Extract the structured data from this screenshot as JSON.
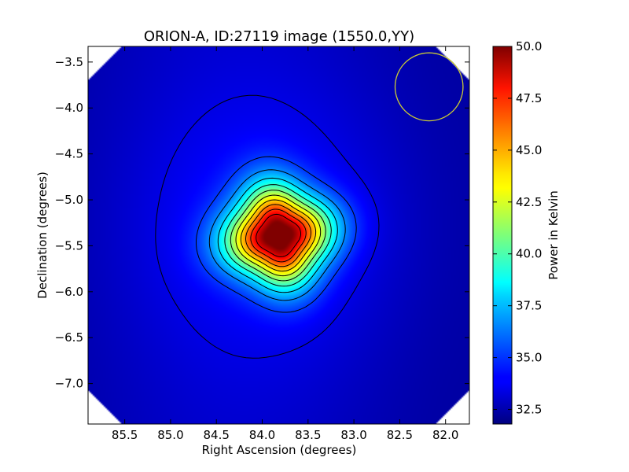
{
  "chart_data": {
    "type": "heatmap",
    "title": "ORION-A, ID:27119 image (1550.0,YY)",
    "xlabel": "Right Ascension (degrees)",
    "ylabel": "Declination (degrees)",
    "xlim": [
      85.9,
      81.74
    ],
    "ylim": [
      -7.44,
      -3.33
    ],
    "x_reversed": true,
    "x_ticks": [
      85.5,
      85.0,
      84.5,
      84.0,
      83.5,
      83.0,
      82.5,
      82.0
    ],
    "x_tick_labels": [
      "85.5",
      "85.0",
      "84.5",
      "84.0",
      "83.5",
      "83.0",
      "82.5",
      "82.0"
    ],
    "y_ticks": [
      -3.5,
      -4.0,
      -4.5,
      -5.0,
      -5.5,
      -6.0,
      -6.5,
      -7.0
    ],
    "y_tick_labels": [
      "−3.5",
      "−4.0",
      "−4.5",
      "−5.0",
      "−5.5",
      "−6.0",
      "−6.5",
      "−7.0"
    ],
    "colorbar": {
      "label": "Power in Kelvin",
      "range": [
        31.8,
        50.0
      ],
      "ticks": [
        32.5,
        35.0,
        37.5,
        40.0,
        42.5,
        45.0,
        47.5,
        50.0
      ],
      "tick_labels": [
        "32.5",
        "35.0",
        "37.5",
        "40.0",
        "42.5",
        "45.0",
        "47.5",
        "50.0"
      ],
      "colormap": "jet"
    },
    "source_peak": {
      "ra": 83.82,
      "dec": -5.39,
      "value": 50.0
    },
    "background_level": 33.0,
    "contour_count": 11,
    "beam_circle": {
      "ra": 82.18,
      "dec": -3.77,
      "radius_deg": 0.37,
      "color": "#cccc33"
    },
    "grid": false
  }
}
